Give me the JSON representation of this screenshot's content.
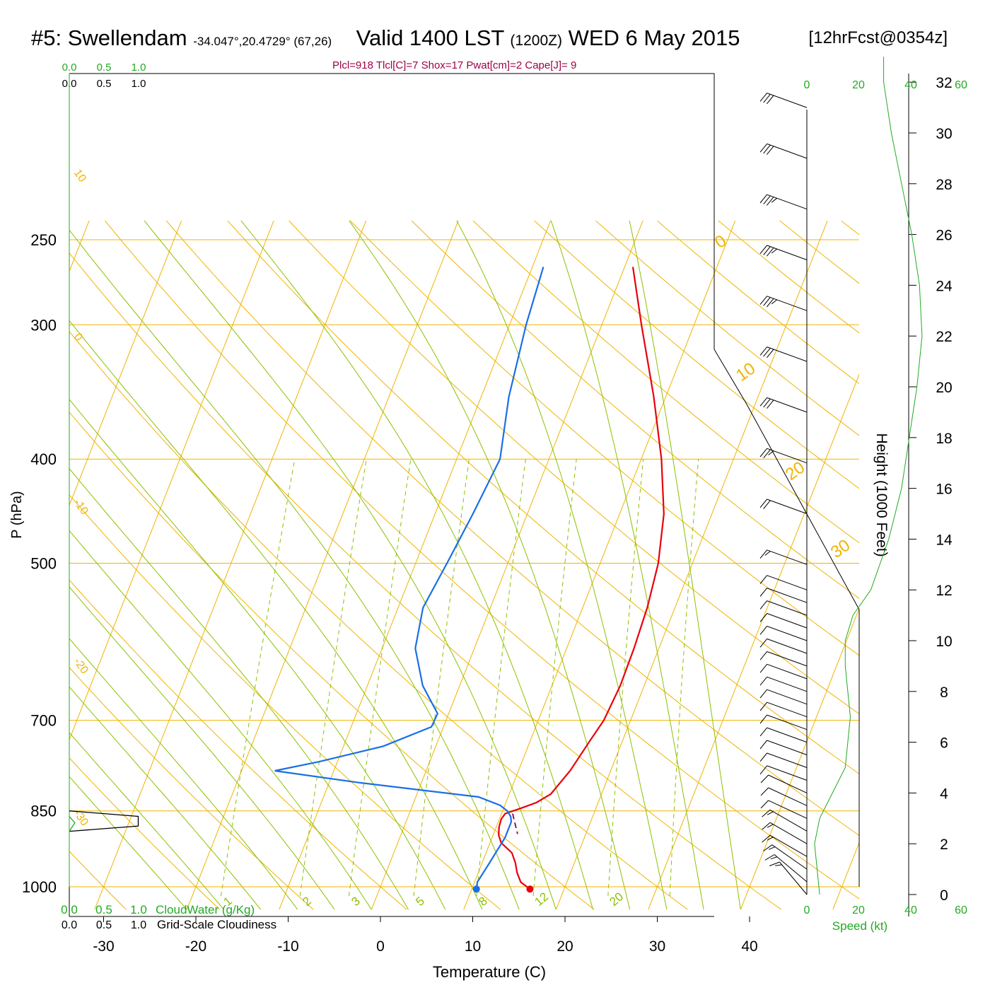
{
  "header": {
    "station": "#5: Swellendam",
    "coords": "-34.047°,20.4729° (67,26)",
    "valid_prefix": "Valid 1400 LST",
    "utc": "(1200Z)",
    "date": "WED 6 May 2015",
    "forecast": "[12hrFcst@0354z]"
  },
  "stats": "Plcl=918 Tlcl[C]=7 Shox=17 Pwat[cm]=2 Cape[J]= 9",
  "cloud_scale": {
    "top_green": [
      "0.0",
      "0.5",
      "1.0"
    ],
    "top_black": [
      "0.0",
      "0.5",
      "1.0"
    ],
    "bottom_green": [
      "0.0",
      "0.5",
      "1.0"
    ],
    "bottom_green_label": "CloudWater (g/Kg)",
    "bottom_black": [
      "0.0",
      "0.5",
      "1.0"
    ],
    "bottom_black_label": "Grid-Scale Cloudiness"
  },
  "speed_axis": {
    "top_ticks": [
      "0",
      "20",
      "40",
      "60"
    ],
    "bottom_ticks": [
      "0",
      "20",
      "40",
      "60"
    ],
    "label": "Speed (kt)"
  },
  "chart_data": {
    "type": "line",
    "subtype": "skew-T log-P sounding",
    "xlabel": "Temperature (C)",
    "ylabel": "P (hPa)",
    "y2label": "Height (1000 Feet)",
    "x_ticks": [
      -30,
      -20,
      -10,
      0,
      10,
      20,
      30,
      40
    ],
    "y_ticks": [
      250,
      300,
      400,
      500,
      700,
      850,
      1000
    ],
    "y2_ticks": [
      0,
      2,
      4,
      6,
      8,
      10,
      12,
      14,
      16,
      18,
      20,
      22,
      24,
      26,
      28,
      30,
      32
    ],
    "x_range": [
      -34,
      36
    ],
    "y_range_hpa": [
      1020,
      250
    ],
    "dry_adiabat_labels": [
      "10",
      "0",
      "-10",
      "-20",
      "-30"
    ],
    "moist_adiabat_labels": [
      "0",
      "10",
      "20",
      "30"
    ],
    "mixing_ratio_labels": [
      "1",
      "2",
      "3",
      "5",
      "8",
      "12",
      "20"
    ],
    "colors": {
      "temperature": "#e8000b",
      "dewpoint": "#1a6fe6",
      "isobar_isotherm": "#f0b400",
      "adiabat": "#8cc000",
      "cloudwater": "#22aa22",
      "stats": "#a0004a"
    },
    "series": [
      {
        "points_p_t": [
          [
            1005,
            16.3
          ],
          [
            990,
            15.0
          ],
          [
            970,
            14.2
          ],
          [
            950,
            13.6
          ],
          [
            930,
            12.8
          ],
          [
            910,
            11.2
          ],
          [
            895,
            10.6
          ],
          [
            880,
            10.3
          ],
          [
            865,
            10.2
          ],
          [
            855,
            10.4
          ],
          [
            845,
            11.9
          ],
          [
            835,
            13.3
          ],
          [
            820,
            14.5
          ],
          [
            780,
            15.6
          ],
          [
            730,
            16.5
          ],
          [
            700,
            17.1
          ],
          [
            650,
            17.4
          ],
          [
            600,
            17.3
          ],
          [
            550,
            17.0
          ],
          [
            500,
            16.3
          ],
          [
            450,
            14.8
          ],
          [
            400,
            12.2
          ],
          [
            350,
            8.7
          ],
          [
            300,
            4.3
          ],
          [
            265,
            0.9
          ]
        ]
      },
      {
        "points_p_t": [
          [
            1005,
            10.5
          ],
          [
            990,
            10.3
          ],
          [
            950,
            10.8
          ],
          [
            900,
            11.4
          ],
          [
            870,
            11.4
          ],
          [
            860,
            11.1
          ],
          [
            850,
            10.5
          ],
          [
            840,
            9.5
          ],
          [
            825,
            6.8
          ],
          [
            800,
            -6.8
          ],
          [
            780,
            -16.4
          ],
          [
            765,
            -12.0
          ],
          [
            740,
            -5.7
          ],
          [
            710,
            -1.3
          ],
          [
            690,
            -1.2
          ],
          [
            650,
            -4.0
          ],
          [
            600,
            -6.4
          ],
          [
            550,
            -7.3
          ],
          [
            500,
            -6.6
          ],
          [
            450,
            -5.9
          ],
          [
            400,
            -5.3
          ],
          [
            350,
            -7.0
          ],
          [
            300,
            -8.2
          ],
          [
            265,
            -8.8
          ]
        ]
      }
    ],
    "parcel_segment_p_t": [
      [
        855,
        11.2
      ],
      [
        893,
        12.6
      ]
    ],
    "wind_barbs": [
      {
        "h": 0,
        "dir": 320,
        "kt": 15
      },
      {
        "h": 0.5,
        "dir": 310,
        "kt": 15
      },
      {
        "h": 1,
        "dir": 305,
        "kt": 15
      },
      {
        "h": 1.5,
        "dir": 300,
        "kt": 15
      },
      {
        "h": 2,
        "dir": 300,
        "kt": 15
      },
      {
        "h": 2.5,
        "dir": 300,
        "kt": 15
      },
      {
        "h": 3,
        "dir": 295,
        "kt": 10
      },
      {
        "h": 3.5,
        "dir": 295,
        "kt": 10
      },
      {
        "h": 4,
        "dir": 295,
        "kt": 10
      },
      {
        "h": 4.5,
        "dir": 290,
        "kt": 10
      },
      {
        "h": 5,
        "dir": 290,
        "kt": 10
      },
      {
        "h": 5.5,
        "dir": 290,
        "kt": 10
      },
      {
        "h": 6,
        "dir": 290,
        "kt": 10
      },
      {
        "h": 6.5,
        "dir": 290,
        "kt": 10
      },
      {
        "h": 7,
        "dir": 290,
        "kt": 10
      },
      {
        "h": 7.5,
        "dir": 290,
        "kt": 10
      },
      {
        "h": 8,
        "dir": 290,
        "kt": 10
      },
      {
        "h": 8.5,
        "dir": 290,
        "kt": 10
      },
      {
        "h": 9,
        "dir": 290,
        "kt": 10
      },
      {
        "h": 9.5,
        "dir": 290,
        "kt": 10
      },
      {
        "h": 10,
        "dir": 290,
        "kt": 10
      },
      {
        "h": 10.5,
        "dir": 290,
        "kt": 10
      },
      {
        "h": 11,
        "dir": 290,
        "kt": 10
      },
      {
        "h": 11.5,
        "dir": 290,
        "kt": 10
      },
      {
        "h": 12,
        "dir": 290,
        "kt": 10
      },
      {
        "h": 13,
        "dir": 290,
        "kt": 15
      },
      {
        "h": 15,
        "dir": 290,
        "kt": 20
      },
      {
        "h": 17,
        "dir": 290,
        "kt": 25
      },
      {
        "h": 19,
        "dir": 290,
        "kt": 30
      },
      {
        "h": 21,
        "dir": 290,
        "kt": 30
      },
      {
        "h": 23,
        "dir": 290,
        "kt": 35
      },
      {
        "h": 25,
        "dir": 290,
        "kt": 35
      },
      {
        "h": 27,
        "dir": 290,
        "kt": 35
      },
      {
        "h": 29,
        "dir": 290,
        "kt": 30
      },
      {
        "h": 31,
        "dir": 290,
        "kt": 30
      }
    ],
    "wind_speed_profile": [
      [
        0,
        5
      ],
      [
        1,
        4
      ],
      [
        2,
        3
      ],
      [
        3,
        5
      ],
      [
        4,
        10
      ],
      [
        5,
        15
      ],
      [
        6,
        16
      ],
      [
        7,
        17
      ],
      [
        8,
        16
      ],
      [
        9,
        15
      ],
      [
        10,
        15
      ],
      [
        11,
        18
      ],
      [
        12,
        25
      ],
      [
        14,
        32
      ],
      [
        16,
        37
      ],
      [
        18,
        40
      ],
      [
        20,
        43
      ],
      [
        22,
        45
      ],
      [
        24,
        44
      ],
      [
        26,
        41
      ],
      [
        28,
        37
      ],
      [
        30,
        33
      ],
      [
        32,
        30
      ],
      [
        33,
        30
      ]
    ],
    "cloudiness_polygon": [
      [
        850,
        0.0
      ],
      [
        860,
        0.75
      ],
      [
        878,
        0.75
      ],
      [
        888,
        0.0
      ]
    ],
    "cloudwater_profile": [
      [
        860,
        0.0
      ],
      [
        872,
        0.08
      ],
      [
        888,
        0.0
      ]
    ]
  }
}
